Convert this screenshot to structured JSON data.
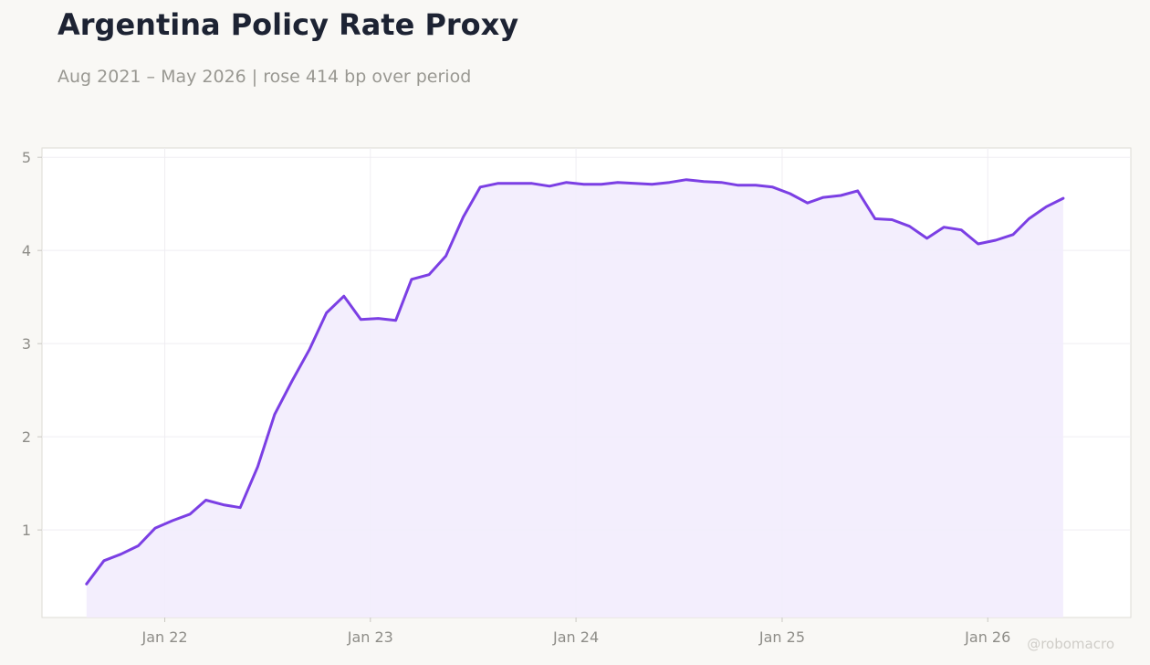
{
  "header": {
    "title": "Argentina Policy Rate Proxy",
    "subtitle": "Aug 2021 – May 2026 | rose 414 bp over period"
  },
  "watermark": "@robomacro",
  "colors": {
    "background": "#f9f8f5",
    "plot_background": "#ffffff",
    "line": "#7b3fe4",
    "fill": "#f2ecfd",
    "grid": "#efedf2",
    "title": "#1d2333",
    "subtitle": "#999892",
    "tick": "#8e8d88"
  },
  "chart_data": {
    "type": "area",
    "title": "Argentina Policy Rate Proxy",
    "subtitle": "Aug 2021 – May 2026 | rose 414 bp over period",
    "xlabel": "",
    "ylabel": "",
    "xlim": [
      "2021-05-28",
      "2026-09-12"
    ],
    "ylim": [
      0.06,
      5.1
    ],
    "yticks": [
      1,
      2,
      3,
      4,
      5
    ],
    "xticks": [
      {
        "date": "2022-01-01",
        "label": "Jan 22"
      },
      {
        "date": "2023-01-01",
        "label": "Jan 23"
      },
      {
        "date": "2024-01-01",
        "label": "Jan 24"
      },
      {
        "date": "2025-01-01",
        "label": "Jan 25"
      },
      {
        "date": "2026-01-01",
        "label": "Jan 26"
      }
    ],
    "grid": true,
    "legend": "none",
    "series": [
      {
        "x": [
          "2021-08",
          "2021-09",
          "2021-10",
          "2021-11",
          "2021-12",
          "2022-01",
          "2022-02",
          "2022-03",
          "2022-04",
          "2022-05",
          "2022-06",
          "2022-07",
          "2022-08",
          "2022-09",
          "2022-10",
          "2022-11",
          "2022-12",
          "2023-01",
          "2023-02",
          "2023-03",
          "2023-04",
          "2023-05",
          "2023-06",
          "2023-07",
          "2023-08",
          "2023-09",
          "2023-10",
          "2023-11",
          "2023-12",
          "2024-01",
          "2024-02",
          "2024-03",
          "2024-04",
          "2024-05",
          "2024-06",
          "2024-07",
          "2024-08",
          "2024-09",
          "2024-10",
          "2024-11",
          "2024-12",
          "2025-01",
          "2025-02",
          "2025-03",
          "2025-04",
          "2025-05",
          "2025-06",
          "2025-07",
          "2025-08",
          "2025-09",
          "2025-10",
          "2025-11",
          "2025-12",
          "2026-01",
          "2026-02",
          "2026-03",
          "2026-04",
          "2026-05"
        ],
        "values": [
          0.42,
          0.67,
          0.74,
          0.83,
          1.02,
          1.1,
          1.17,
          1.32,
          1.27,
          1.24,
          1.68,
          2.24,
          2.6,
          2.94,
          3.33,
          3.51,
          3.26,
          3.27,
          3.25,
          3.69,
          3.74,
          3.94,
          4.36,
          4.68,
          4.72,
          4.72,
          4.72,
          4.69,
          4.73,
          4.71,
          4.71,
          4.73,
          4.72,
          4.71,
          4.73,
          4.76,
          4.74,
          4.73,
          4.7,
          4.7,
          4.68,
          4.61,
          4.51,
          4.57,
          4.59,
          4.64,
          4.34,
          4.33,
          4.26,
          4.13,
          4.25,
          4.22,
          4.07,
          4.11,
          4.17,
          4.34,
          4.47,
          4.56
        ]
      }
    ]
  }
}
